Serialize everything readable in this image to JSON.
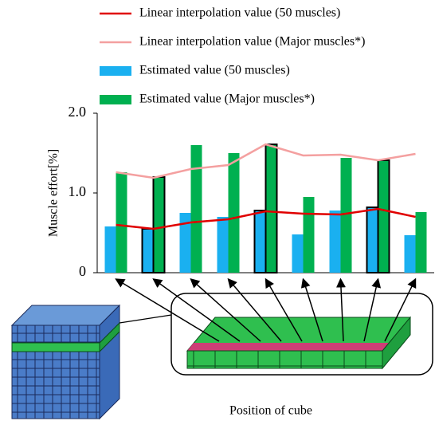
{
  "chart_data": {
    "type": "bar",
    "y_label": "Muscle effort[%]",
    "x_label": "Position of cube",
    "categories": [
      null,
      null,
      null,
      null,
      null,
      null,
      null,
      null,
      null
    ],
    "outlined": [
      false,
      true,
      false,
      false,
      true,
      false,
      false,
      true,
      false
    ],
    "ylim": [
      0,
      2
    ],
    "yticks": [
      0,
      {
        "value": 1,
        "label": "1.0"
      },
      {
        "value": 2,
        "label": "2.0"
      }
    ],
    "series": [
      {
        "name": "Linear interpolation value (50 muscles)",
        "kind": "line",
        "color": "#e00000",
        "values": [
          0.6,
          0.55,
          0.63,
          0.67,
          0.77,
          0.74,
          0.73,
          0.8,
          0.7
        ]
      },
      {
        "name": "Linear interpolation value (Major muscles*)",
        "kind": "line",
        "color": "#f4a0a0",
        "values": [
          1.26,
          1.19,
          1.3,
          1.35,
          1.61,
          1.47,
          1.48,
          1.41,
          1.49
        ]
      },
      {
        "name": "Estimated value (50 muscles)",
        "kind": "bar",
        "color": "#1ab0f0",
        "values": [
          0.58,
          0.55,
          0.75,
          0.7,
          0.78,
          0.48,
          0.78,
          0.82,
          0.47
        ]
      },
      {
        "name": "Estimated value (Major muscles*)",
        "kind": "bar",
        "color": "#00b050",
        "values": [
          1.26,
          1.2,
          1.6,
          1.5,
          1.61,
          0.95,
          1.44,
          1.41,
          0.76
        ]
      }
    ]
  }
}
